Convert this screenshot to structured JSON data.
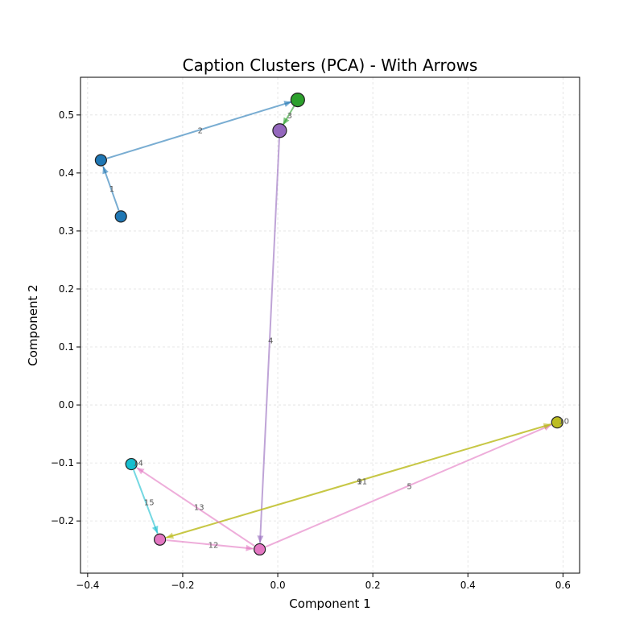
{
  "chart_data": {
    "type": "scatter",
    "title": "Caption Clusters (PCA) - With Arrows",
    "xlabel": "Component 1",
    "ylabel": "Component 2",
    "xlim": [
      -0.415,
      0.635
    ],
    "ylim": [
      -0.29,
      0.565
    ],
    "xticks": [
      -0.4,
      -0.2,
      0.0,
      0.2,
      0.4,
      0.6
    ],
    "xtick_labels": [
      "−0.4",
      "−0.2",
      "0.0",
      "0.2",
      "0.4",
      "0.6"
    ],
    "yticks": [
      -0.2,
      -0.1,
      0.0,
      0.1,
      0.2,
      0.3,
      0.4,
      0.5
    ],
    "ytick_labels": [
      "−0.2",
      "−0.1",
      "0.0",
      "0.1",
      "0.2",
      "0.3",
      "0.4",
      "0.5"
    ],
    "grid": true,
    "points": [
      {
        "x": -0.33,
        "y": 0.325,
        "color": "#1f77b4"
      },
      {
        "x": -0.372,
        "y": 0.422,
        "color": "#1f77b4"
      },
      {
        "x": 0.042,
        "y": 0.526,
        "color": "#2ca02c"
      },
      {
        "x": 0.004,
        "y": 0.473,
        "color": "#9467bd"
      },
      {
        "x": -0.038,
        "y": -0.249,
        "color": "#e377c2"
      },
      {
        "x": 0.588,
        "y": -0.03,
        "color": "#bcbd22"
      },
      {
        "x": -0.248,
        "y": -0.232,
        "color": "#e377c2"
      },
      {
        "x": -0.308,
        "y": -0.102,
        "color": "#17becf"
      }
    ],
    "arrows": [
      {
        "label": "1",
        "from": 0,
        "to": 1,
        "color": "#1f77b4"
      },
      {
        "label": "2",
        "from": 1,
        "to": 2,
        "color": "#1f77b4"
      },
      {
        "label": "3",
        "from": 2,
        "to": 3,
        "color": "#2ca02c"
      },
      {
        "label": "4",
        "from": 3,
        "to": 4,
        "color": "#9467bd"
      },
      {
        "label": "5",
        "from": 4,
        "to": 5,
        "color": "#e377c2"
      },
      {
        "label": "9",
        "from": 5,
        "to": 6,
        "color": "#bcbd22"
      },
      {
        "label": "10",
        "from": 5,
        "to": 5,
        "color": "#bcbd22"
      },
      {
        "label": "11",
        "from": 6,
        "to": 5,
        "color": "#bcbd22"
      },
      {
        "label": "12",
        "from": 6,
        "to": 4,
        "color": "#e377c2"
      },
      {
        "label": "13",
        "from": 4,
        "to": 7,
        "color": "#e377c2"
      },
      {
        "label": "14",
        "from": 7,
        "to": 7,
        "color": "#17becf"
      },
      {
        "label": "15",
        "from": 7,
        "to": 6,
        "color": "#17becf"
      }
    ]
  }
}
